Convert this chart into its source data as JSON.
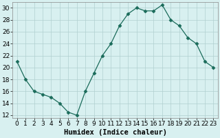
{
  "x": [
    0,
    1,
    2,
    3,
    4,
    5,
    6,
    7,
    8,
    9,
    10,
    11,
    12,
    13,
    14,
    15,
    16,
    17,
    18,
    19,
    20,
    21,
    22,
    23
  ],
  "y": [
    21,
    18,
    16,
    15.5,
    15,
    14,
    12.5,
    12,
    16,
    19,
    22,
    24,
    27,
    29,
    30,
    29.5,
    29.5,
    30.5,
    28,
    27,
    25,
    24,
    21,
    20
  ],
  "line_color": "#1a6b5a",
  "marker": "D",
  "marker_size": 2.5,
  "bg_color": "#d8f0f0",
  "grid_color": "#b0d0d0",
  "xlabel": "Humidex (Indice chaleur)",
  "xlim": [
    -0.5,
    23.5
  ],
  "ylim": [
    11.5,
    31
  ],
  "yticks": [
    12,
    14,
    16,
    18,
    20,
    22,
    24,
    26,
    28,
    30
  ],
  "xticks": [
    0,
    1,
    2,
    3,
    4,
    5,
    6,
    7,
    8,
    9,
    10,
    11,
    12,
    13,
    14,
    15,
    16,
    17,
    18,
    19,
    20,
    21,
    22,
    23
  ],
  "xlabel_fontsize": 7.5,
  "tick_fontsize": 6.5
}
